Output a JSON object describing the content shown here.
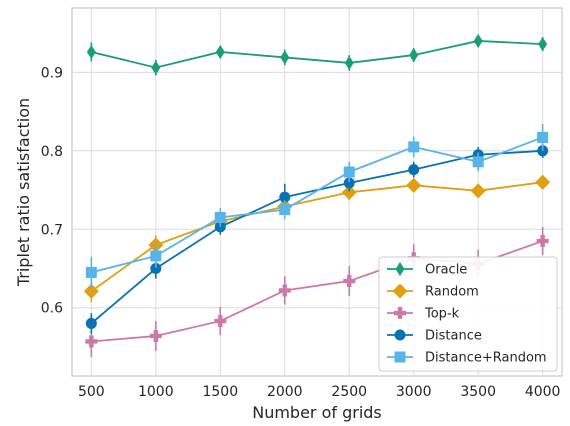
{
  "chart_data": {
    "type": "line",
    "title": "",
    "xlabel": "Number of grids",
    "ylabel": "Triplet ratio satisfaction",
    "x": [
      500,
      1000,
      1500,
      2000,
      2500,
      3000,
      3500,
      4000
    ],
    "xticks": [
      "500",
      "1000",
      "1500",
      "2000",
      "2500",
      "3000",
      "3500",
      "4000"
    ],
    "yticks": [
      "0.6",
      "0.7",
      "0.8",
      "0.9"
    ],
    "ytick_values": [
      0.6,
      0.7,
      0.8,
      0.9
    ],
    "xlim": [
      350,
      4150
    ],
    "ylim": [
      0.513,
      0.982
    ],
    "grid": true,
    "legend_position": "lower right",
    "series": [
      {
        "name": "Oracle",
        "color": "#1a9e77",
        "marker": "diamond-thin",
        "values": [
          0.926,
          0.906,
          0.926,
          0.919,
          0.912,
          0.922,
          0.94,
          0.936
        ],
        "err": [
          0.012,
          0.01,
          0.008,
          0.01,
          0.01,
          0.009,
          0.008,
          0.009
        ]
      },
      {
        "name": "Random",
        "color": "#e09f11",
        "marker": "diamond",
        "values": [
          0.621,
          0.68,
          0.71,
          0.729,
          0.747,
          0.756,
          0.749,
          0.76
        ],
        "err": [
          0.014,
          0.012,
          0.01,
          0.011,
          0.01,
          0.009,
          0.009,
          0.009
        ]
      },
      {
        "name": "Top-k",
        "color": "#cc79a7",
        "marker": "plus",
        "values": [
          0.557,
          0.564,
          0.583,
          0.622,
          0.634,
          0.663,
          0.656,
          0.685
        ],
        "err": [
          0.02,
          0.019,
          0.018,
          0.018,
          0.019,
          0.018,
          0.018,
          0.018
        ]
      },
      {
        "name": "Distance",
        "color": "#0a72b2",
        "marker": "circle",
        "values": [
          0.58,
          0.65,
          0.703,
          0.741,
          0.759,
          0.776,
          0.795,
          0.8
        ],
        "err": [
          0.013,
          0.013,
          0.01,
          0.017,
          0.011,
          0.01,
          0.01,
          0.009
        ]
      },
      {
        "name": "Distance+Random",
        "color": "#56b4e9",
        "marker": "square",
        "values": [
          0.645,
          0.666,
          0.715,
          0.725,
          0.773,
          0.805,
          0.786,
          0.817
        ],
        "err": [
          0.02,
          0.015,
          0.012,
          0.012,
          0.013,
          0.013,
          0.012,
          0.017
        ]
      }
    ]
  }
}
